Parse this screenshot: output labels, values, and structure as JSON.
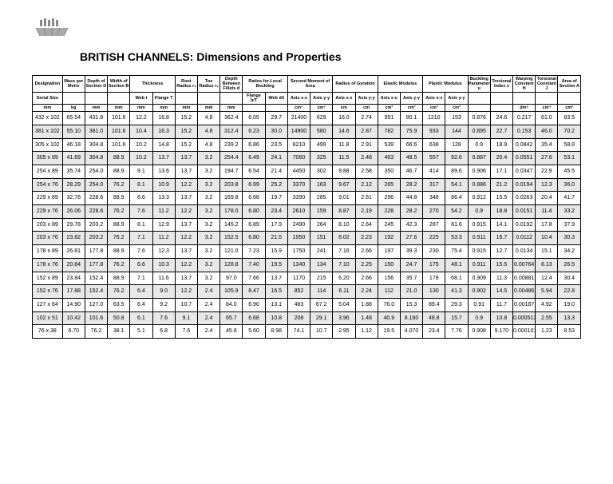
{
  "title": "BRITISH CHANNELS: Dimensions and Properties",
  "headerGroups": [
    {
      "label": "Designation",
      "span": 1
    },
    {
      "label": "Mass per Metre",
      "span": 1
    },
    {
      "label": "Depth of Section D",
      "span": 1
    },
    {
      "label": "Width of Section B",
      "span": 1
    },
    {
      "label": "Thickness",
      "span": 2
    },
    {
      "label": "Root Radius r₁",
      "span": 1
    },
    {
      "label": "Toe Radius r₂",
      "span": 1
    },
    {
      "label": "Depth Between Fillets d",
      "span": 1
    },
    {
      "label": "Ratios for Local Buckling",
      "span": 2
    },
    {
      "label": "Second Moment of Area",
      "span": 2
    },
    {
      "label": "Radius of Gyration",
      "span": 2
    },
    {
      "label": "Elastic Modulus",
      "span": 2
    },
    {
      "label": "Plastic Modulus",
      "span": 2
    },
    {
      "label": "Buckling Parameter u",
      "span": 1
    },
    {
      "label": "Torsional Index x",
      "span": 1
    },
    {
      "label": "Warping Constant H",
      "span": 1
    },
    {
      "label": "Torsional Constant J",
      "span": 1
    },
    {
      "label": "Area of Section A",
      "span": 1
    }
  ],
  "subHeaders": [
    "Serial Size",
    "",
    "",
    "",
    "Web t",
    "Flange T",
    "",
    "",
    "",
    "Flange b/T",
    "Web d/t",
    "Axis x-x",
    "Axis y-y",
    "Axis x-x",
    "Axis y-y",
    "Axis x-x",
    "Axis y-y",
    "Axis x-x",
    "Axis y-y",
    "",
    "",
    "",
    "",
    ""
  ],
  "units": [
    "mm",
    "kg",
    "mm",
    "mm",
    "mm",
    "mm",
    "mm",
    "mm",
    "mm",
    "",
    "",
    "cm⁴",
    "cm⁴",
    "cm",
    "cm",
    "cm³",
    "cm³",
    "cm³",
    "cm³",
    "",
    "",
    "dm⁶",
    "cm⁴",
    "cm²"
  ],
  "rows": [
    [
      "432 x 102",
      "65.54",
      "431.8",
      "101.6",
      "12.2",
      "16.8",
      "15.2",
      "4.8",
      "362.4",
      "6.05",
      "29.7",
      "21400",
      "629",
      "16.0",
      "2.74",
      "991",
      "80.1",
      "1210",
      "153",
      "0.876",
      "24.6",
      "0.217",
      "61.0",
      "83.5"
    ],
    [
      "381 x 102",
      "55.10",
      "381.0",
      "101.6",
      "10.4",
      "16.3",
      "15.2",
      "4.8",
      "312.4",
      "6.23",
      "30.0",
      "14900",
      "580",
      "14.6",
      "2.87",
      "782",
      "75.9",
      "933",
      "144",
      "0.895",
      "22.7",
      "0.153",
      "46.0",
      "70.2"
    ],
    [
      "305 x 102",
      "46.18",
      "304.8",
      "101.6",
      "10.2",
      "14.8",
      "15.2",
      "4.8",
      "239.2",
      "6.86",
      "23.5",
      "8210",
      "499",
      "11.8",
      "2.91",
      "539",
      "66.6",
      "638",
      "128",
      "0.9",
      "18.9",
      "0.0842",
      "35.4",
      "58.8"
    ],
    [
      "305 x 89",
      "41.69",
      "304.8",
      "88.9",
      "10.2",
      "13.7",
      "13.7",
      "3.2",
      "254.4",
      "6.49",
      "24.1",
      "7060",
      "325",
      "11.5",
      "2.48",
      "463",
      "48.5",
      "557",
      "92.6",
      "0.887",
      "20.4",
      "0.0551",
      "27.6",
      "53.1"
    ],
    [
      "254 x 89",
      "35.74",
      "254.0",
      "88.9",
      "9.1",
      "13.6",
      "13.7",
      "3.2",
      "194.7",
      "6.54",
      "21.4",
      "4450",
      "302",
      "9.88",
      "2.58",
      "350",
      "46.7",
      "414",
      "89.6",
      "0.906",
      "17.1",
      "0.0347",
      "22.9",
      "45.5"
    ],
    [
      "254 x 76",
      "28.29",
      "254.0",
      "76.2",
      "8.1",
      "10.9",
      "12.2",
      "3.2",
      "203.8",
      "6.99",
      "25.2",
      "3370",
      "163",
      "9.67",
      "2.12",
      "265",
      "28.2",
      "317",
      "54.1",
      "0.886",
      "21.2",
      "0.0194",
      "12.3",
      "36.0"
    ],
    [
      "229 x 89",
      "32.76",
      "228.6",
      "88.9",
      "8.6",
      "13.3",
      "13.7",
      "3.2",
      "169.8",
      "6.68",
      "19.7",
      "3390",
      "285",
      "9.01",
      "2.61",
      "296",
      "44.8",
      "348",
      "86.4",
      "0.912",
      "15.5",
      "0.0263",
      "20.4",
      "41.7"
    ],
    [
      "229 x 76",
      "26.06",
      "228.6",
      "76.2",
      "7.6",
      "11.2",
      "12.2",
      "3.2",
      "178.0",
      "6.80",
      "23.4",
      "2610",
      "159",
      "8.87",
      "2.19",
      "228",
      "28.2",
      "270",
      "54.2",
      "0.9",
      "18.8",
      "0.0151",
      "11.4",
      "33.2"
    ],
    [
      "203 x 89",
      "29.78",
      "203.2",
      "88.9",
      "8.1",
      "12.9",
      "13.7",
      "3.2",
      "145.2",
      "6.89",
      "17.9",
      "2490",
      "264",
      "8.10",
      "2.64",
      "245",
      "42.3",
      "287",
      "81.6",
      "0.915",
      "14.1",
      "0.0192",
      "17.8",
      "37.9"
    ],
    [
      "203 x 76",
      "23.82",
      "203.2",
      "76.2",
      "7.1",
      "11.2",
      "12.2",
      "3.2",
      "152.5",
      "6.80",
      "21.5",
      "1950",
      "151",
      "8.02",
      "2.23",
      "192",
      "27.6",
      "225",
      "53.3",
      "0.911",
      "16.7",
      "0.0112",
      "10.4",
      "30.3"
    ],
    [
      "178 x 89",
      "26.81",
      "177.8",
      "88.9",
      "7.6",
      "12.3",
      "13.7",
      "3.2",
      "121.0",
      "7.23",
      "15.9",
      "1750",
      "241",
      "7.16",
      "2.66",
      "197",
      "39.3",
      "230",
      "75.4",
      "0.915",
      "12.7",
      "0.0134",
      "15.1",
      "34.2"
    ],
    [
      "178 x 76",
      "20.84",
      "177.8",
      "76.2",
      "6.6",
      "10.3",
      "12.2",
      "3.2",
      "128.8",
      "7.40",
      "19.5",
      "1340",
      "134",
      "7.10",
      "2.25",
      "150",
      "24.7",
      "175",
      "48.1",
      "0.911",
      "15.5",
      "0.00764",
      "8.13",
      "26.5"
    ],
    [
      "152 x 89",
      "23.84",
      "152.4",
      "88.9",
      "7.1",
      "11.6",
      "13.7",
      "3.2",
      "97.0",
      "7.66",
      "13.7",
      "1170",
      "215",
      "6.20",
      "2.66",
      "156",
      "35.7",
      "178",
      "68.1",
      "0.909",
      "11.3",
      "0.00881",
      "12.4",
      "30.4"
    ],
    [
      "152 x 76",
      "17.88",
      "152.4",
      "76.2",
      "6.4",
      "9.0",
      "12.2",
      "2.4",
      "105.9",
      "8.47",
      "16.5",
      "852",
      "114",
      "6.11",
      "2.24",
      "112",
      "21.0",
      "130",
      "41.3",
      "0.902",
      "14.5",
      "0.00486",
      "5.94",
      "22.8"
    ],
    [
      "127 x 64",
      "14.90",
      "127.0",
      "63.5",
      "6.4",
      "9.2",
      "10.7",
      "2.4",
      "84.0",
      "6.90",
      "13.1",
      "483",
      "67.2",
      "5.04",
      "1.88",
      "76.0",
      "15.3",
      "89.4",
      "29.3",
      "0.91",
      "11.7",
      "0.00187",
      "4.92",
      "19.0"
    ],
    [
      "102 x 51",
      "10.42",
      "101.6",
      "50.8",
      "6.1",
      "7.6",
      "9.1",
      "2.4",
      "65.7",
      "6.68",
      "10.8",
      "208",
      "29.1",
      "3.96",
      "1.48",
      "40.9",
      "8.160",
      "48.8",
      "15.7",
      "0.9",
      "10.8",
      "0.000513",
      "2.55",
      "13.3"
    ],
    [
      "76 x 38",
      "6.70",
      "76.2",
      "38.1",
      "5.1",
      "6.8",
      "7.6",
      "2.4",
      "45.8",
      "5.60",
      "8.98",
      "74.1",
      "10.7",
      "2.95",
      "1.12",
      "19.5",
      "4.070",
      "23.4",
      "7.76",
      "0.908",
      "9.170",
      "0.000101",
      "1.23",
      "8.53"
    ]
  ]
}
